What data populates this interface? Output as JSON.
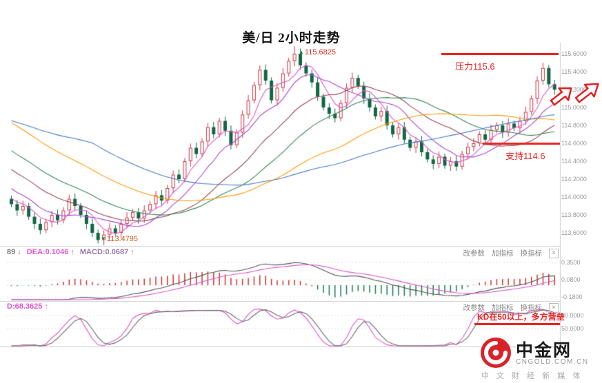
{
  "title": "美/日 2小时走势",
  "panel_controls": {
    "edit": "改参数",
    "add": "加指标",
    "switch": "换指标",
    "close": "×"
  },
  "watermark": {
    "brand": "中金网",
    "domain": "CNGOLD.COM.CN",
    "tagline": "中 文 财 经 新 媒 体"
  },
  "chart_data": [
    {
      "type": "candlestick",
      "title": "美/日 2小时走势",
      "timeframe": "2小时",
      "ylim": [
        113.46,
        115.72
      ],
      "y_ticks": [
        "115.6000",
        "115.4000",
        "115.2000",
        "115.0000",
        "114.8000",
        "114.6000",
        "114.4000",
        "114.2000",
        "114.0000",
        "113.8000",
        "113.6000"
      ],
      "first_open": 113.98,
      "closes": [
        113.92,
        113.85,
        113.9,
        113.78,
        113.7,
        113.63,
        113.72,
        113.8,
        113.74,
        113.85,
        113.98,
        113.9,
        113.8,
        113.7,
        113.6,
        113.52,
        113.58,
        113.65,
        113.6,
        113.7,
        113.77,
        113.83,
        113.76,
        113.85,
        113.92,
        114.02,
        113.96,
        114.1,
        114.25,
        114.2,
        114.4,
        114.55,
        114.48,
        114.62,
        114.78,
        114.7,
        114.85,
        114.74,
        114.58,
        114.72,
        114.92,
        115.08,
        115.25,
        115.42,
        115.3,
        115.08,
        115.22,
        115.38,
        115.52,
        115.6,
        115.47,
        115.38,
        115.28,
        115.12,
        115.0,
        114.93,
        114.88,
        115.05,
        115.22,
        115.33,
        115.24,
        115.1,
        115.0,
        114.9,
        114.96,
        114.8,
        114.7,
        114.78,
        114.64,
        114.55,
        114.62,
        114.5,
        114.42,
        114.37,
        114.45,
        114.35,
        114.4,
        114.34,
        114.48,
        114.56,
        114.6,
        114.7,
        114.64,
        114.75,
        114.8,
        114.72,
        114.82,
        114.77,
        114.85,
        114.95,
        115.1,
        115.3,
        115.44,
        115.26,
        115.2
      ],
      "high_point": {
        "index": 49,
        "value": 115.6825,
        "label": "115.6825"
      },
      "low_point": {
        "index": 15,
        "value": 113.4795,
        "label": "113.4795"
      },
      "resistance": {
        "level": 115.6,
        "label": "压力115.6",
        "color": "#ee2222"
      },
      "support": {
        "level": 114.6,
        "label": "支持114.6",
        "color": "#ee2222"
      },
      "up_color": "#cc3344",
      "down_color": "#116644",
      "moving_averages": [
        {
          "period": 5,
          "color": "#e055cc"
        },
        {
          "period": 10,
          "color": "#aa44cc"
        },
        {
          "period": 20,
          "color": "#994455"
        },
        {
          "period": 30,
          "color": "#338855"
        },
        {
          "period": 45,
          "color": "#ff9900"
        },
        {
          "period": 60,
          "color": "#4477cc"
        }
      ]
    },
    {
      "type": "macd",
      "header": [
        {
          "text": "89 ↓",
          "color": "#777777"
        },
        {
          "text": "DEA:0.1046 ↑",
          "color": "#dd55cc"
        },
        {
          "text": "MACD:0.0687 ↑",
          "color": "#9977aa"
        }
      ],
      "y_ticks": [
        {
          "label": "0.3500",
          "value": 0.35
        },
        {
          "label": "0.0800",
          "value": 0.08
        },
        {
          "label": "-0.1800",
          "value": -0.18
        }
      ],
      "ylim": [
        -0.23,
        0.42
      ],
      "dif_color": "#555555",
      "dea_color": "#dd55cc",
      "pos_color": "#cc3333",
      "neg_color": "#1a7a4a"
    },
    {
      "type": "stochastic",
      "header": [
        {
          "text": "D:68.3625 ↑",
          "color": "#dd55cc"
        }
      ],
      "y_ticks": [
        {
          "label": "80.0000",
          "value": 80
        },
        {
          "label": "50.0000",
          "value": 50
        }
      ],
      "ylim": [
        10,
        100
      ],
      "k_color": "#dd55cc",
      "d_color": "#666666",
      "annotation": {
        "text": "KD在50以上，多方营垒",
        "color": "#ee2222"
      }
    }
  ]
}
